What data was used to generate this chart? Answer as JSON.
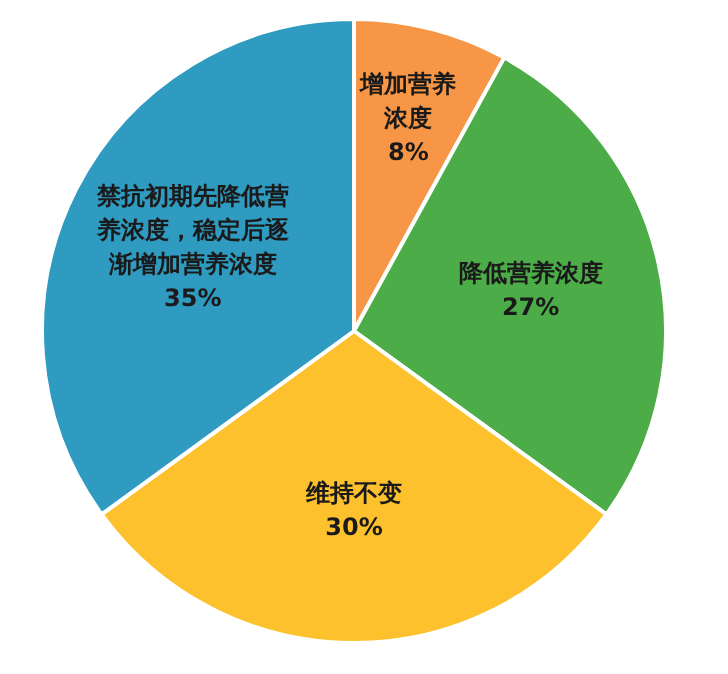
{
  "chart_data": {
    "type": "pie",
    "categories": [
      "增加营养浓度",
      "降低营养浓度",
      "维持不变",
      "禁抗初期先降低营养浓度，稳定后逐渐增加营养浓度"
    ],
    "values": [
      8,
      27,
      30,
      35
    ],
    "colors": [
      "#f79646",
      "#4bac48",
      "#fcc12c",
      "#2f9bc1"
    ],
    "value_labels": [
      "8%",
      "27%",
      "30%",
      "35%"
    ],
    "legend": false
  }
}
